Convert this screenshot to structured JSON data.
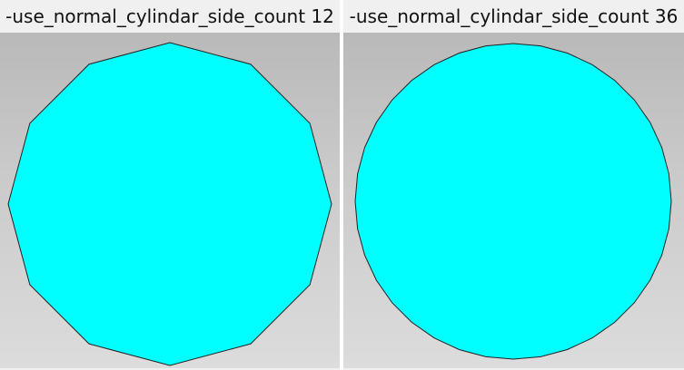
{
  "panels": [
    {
      "label": "-use_normal_cylindar_side_count 12",
      "side_count": 12
    },
    {
      "label": "-use_normal_cylindar_side_count 36",
      "side_count": 36
    }
  ],
  "colors": {
    "fill": "#00ffff",
    "edge": "#222222",
    "background_top": "#b9b9b9",
    "background_bottom": "#dcdcdc",
    "label_bar": "#f0f0f0",
    "separator": "#ffffff"
  }
}
